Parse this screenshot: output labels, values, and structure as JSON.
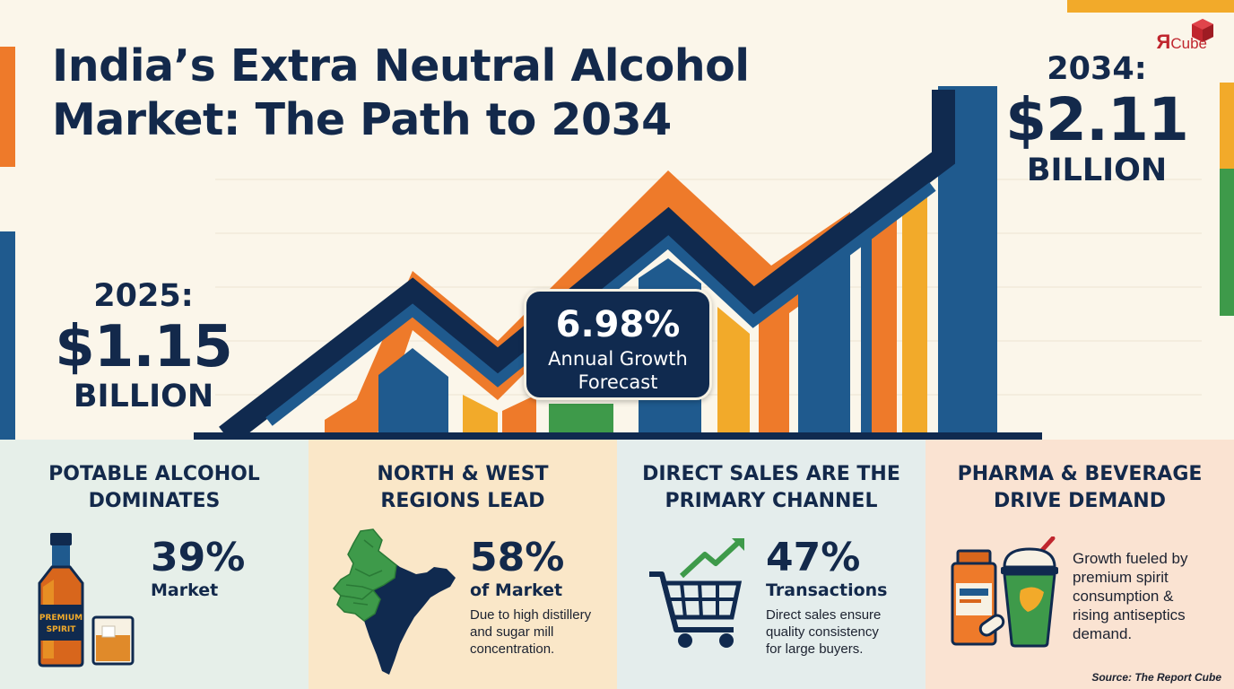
{
  "title": {
    "line1": "India’s Extra Neutral Alcohol",
    "line2": "Market: The Path to 2034"
  },
  "brand": {
    "logo_text_r": "Я",
    "logo_text": "Cube"
  },
  "start": {
    "year": "2025:",
    "value": "$1.15",
    "unit": "BILLION"
  },
  "end": {
    "year": "2034:",
    "value": "$2.11",
    "unit": "BILLION"
  },
  "cagr": {
    "value": "6.98%",
    "label_line1": "Annual Growth",
    "label_line2": "Forecast"
  },
  "panels": [
    {
      "title_line1": "POTABLE ALCOHOL",
      "title_line2": "DOMINATES",
      "value": "39%",
      "value_label": "Market",
      "bottle_label_1": "PREMIUM",
      "bottle_label_2": "SPIRIT"
    },
    {
      "title_line1": "NORTH & WEST",
      "title_line2": "REGIONS LEAD",
      "value": "58%",
      "value_label": "of Market",
      "desc_line1": "Due to high distillery",
      "desc_line2": "and sugar mill",
      "desc_line3": "concentration."
    },
    {
      "title_line1": "DIRECT SALES ARE THE",
      "title_line2": "PRIMARY CHANNEL",
      "value": "47%",
      "value_label": "Transactions",
      "desc_line1": "Direct sales ensure",
      "desc_line2": "quality consistency",
      "desc_line3": "for large buyers."
    },
    {
      "title_line1": "PHARMA & BEVERAGE",
      "title_line2": "DRIVE DEMAND",
      "desc_line1": "Growth fueled by",
      "desc_line2": "premium spirit",
      "desc_line3": "consumption &",
      "desc_line4": "rising antiseptics",
      "desc_line5": "demand."
    }
  ],
  "source": "Source: The Report Cube",
  "colors": {
    "navy": "#13294b",
    "blue": "#1f5a8e",
    "orange": "#ee7a2a",
    "amber": "#f2aa2a",
    "green": "#3e9a4a",
    "red": "#c0262e"
  }
}
